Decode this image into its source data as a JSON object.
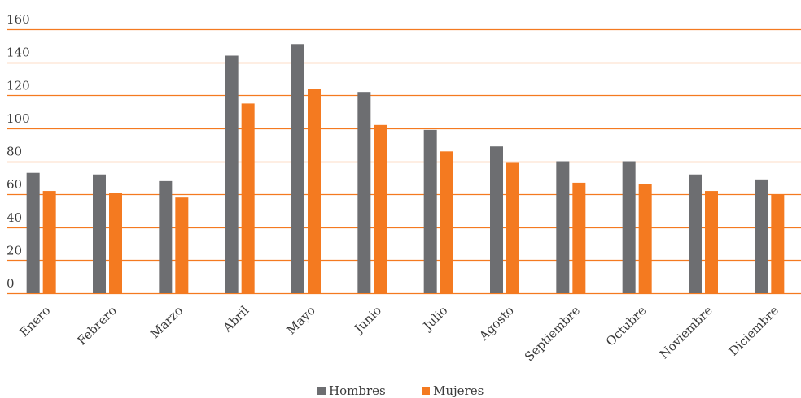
{
  "chart_data": {
    "type": "bar",
    "categories": [
      "Enero",
      "Febrero",
      "Marzo",
      "Abril",
      "Mayo",
      "Junio",
      "Julio",
      "Agosto",
      "Septiembre",
      "Octubre",
      "Noviembre",
      "Diciembre"
    ],
    "series": [
      {
        "name": "Hombres",
        "color": "#6d6e71",
        "values": [
          73,
          72,
          68,
          144,
          151,
          122,
          99,
          89,
          80,
          80,
          72,
          69
        ]
      },
      {
        "name": "Mujeres",
        "color": "#f47a20",
        "values": [
          62,
          61,
          58,
          115,
          124,
          102,
          86,
          79,
          67,
          66,
          62,
          60
        ]
      }
    ],
    "y_ticks": [
      "0",
      "20",
      "40",
      "60",
      "80",
      "100",
      "120",
      "140",
      "160"
    ],
    "ylim": [
      0,
      160
    ],
    "grid": true,
    "grid_color": "#f47a20",
    "legend_position": "bottom"
  }
}
